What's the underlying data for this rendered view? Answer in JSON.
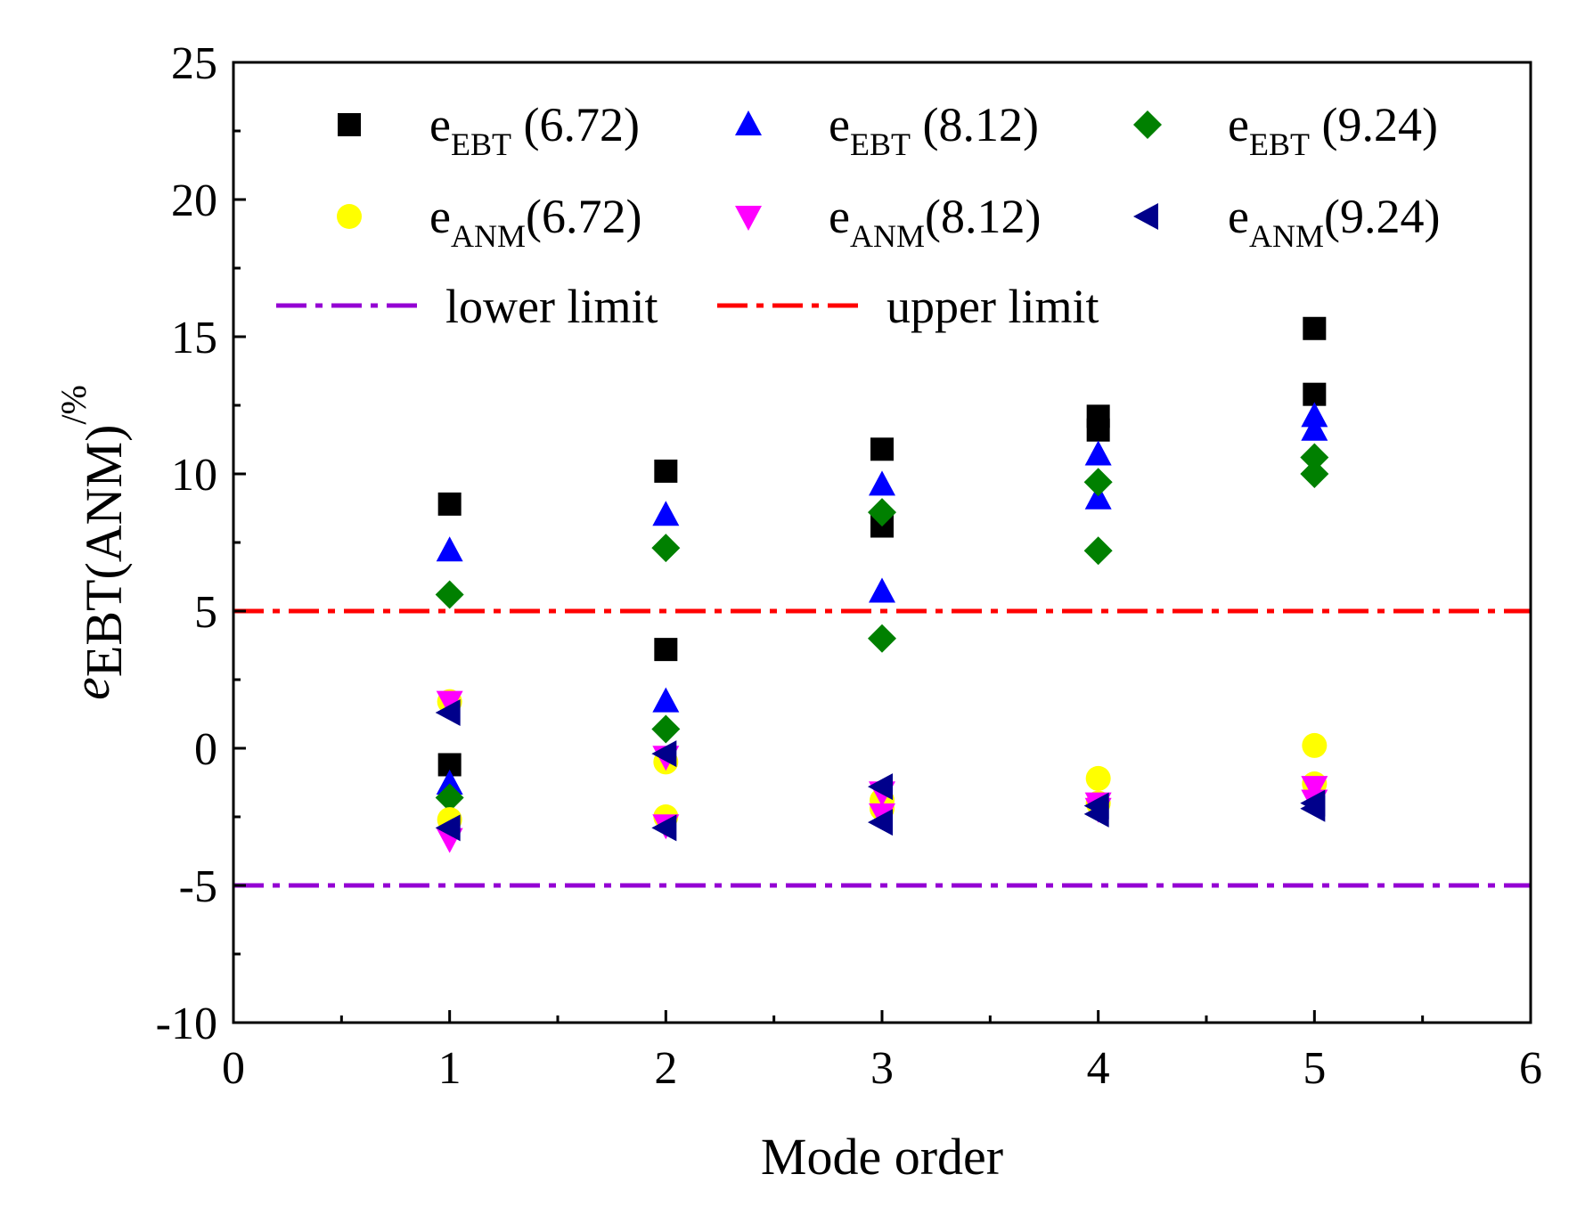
{
  "chart_data": {
    "type": "scatter",
    "title": "",
    "xlabel": "Mode order",
    "ylabel": {
      "base": "e",
      "sub": "EBT(ANM)",
      "sup": "/%"
    },
    "xlim": [
      0,
      6
    ],
    "ylim": [
      -10,
      25
    ],
    "x_ticks": [
      0,
      1,
      2,
      3,
      4,
      5,
      6
    ],
    "y_ticks": [
      -10,
      -5,
      0,
      5,
      10,
      15,
      20,
      25
    ],
    "x_tick_labels": [
      "0",
      "1",
      "2",
      "3",
      "4",
      "5",
      "6"
    ],
    "y_tick_labels": [
      "-10",
      "-5",
      "0",
      "5",
      "10",
      "15",
      "20",
      "25"
    ],
    "grid": false,
    "legend_position": "top",
    "series": [
      {
        "name": "e_EBT (6.72)",
        "label_main": "e",
        "label_sub": "EBT",
        "label_rest": " (6.72)",
        "marker": "square",
        "color": "#000000",
        "x": [
          1,
          1,
          2,
          2,
          3,
          3,
          4,
          4,
          5,
          5
        ],
        "y": [
          8.9,
          -0.6,
          10.1,
          3.6,
          10.9,
          8.1,
          12.1,
          11.6,
          15.3,
          12.9
        ]
      },
      {
        "name": "e_EBT (8.12)",
        "label_main": "e",
        "label_sub": "EBT",
        "label_rest": " (8.12)",
        "marker": "triangle-up",
        "color": "#0000ff",
        "x": [
          1,
          1,
          2,
          2,
          3,
          3,
          4,
          4,
          5,
          5
        ],
        "y": [
          7.2,
          -1.3,
          8.5,
          1.7,
          9.6,
          5.7,
          10.7,
          9.1,
          12.1,
          11.6
        ]
      },
      {
        "name": "e_EBT (9.24)",
        "label_main": "e",
        "label_sub": "EBT",
        "label_rest": " (9.24)",
        "marker": "diamond",
        "color": "#008000",
        "x": [
          1,
          1,
          2,
          2,
          3,
          3,
          4,
          4,
          5,
          5
        ],
        "y": [
          5.6,
          -1.8,
          7.3,
          0.7,
          8.6,
          4.0,
          9.7,
          7.2,
          10.6,
          10.0
        ]
      },
      {
        "name": "e_ANM(6.72)",
        "label_main": "e",
        "label_sub": "ANM",
        "label_rest": "(6.72)",
        "marker": "circle",
        "color": "#ffff00",
        "x": [
          1,
          1,
          2,
          2,
          3,
          3,
          4,
          4,
          5,
          5
        ],
        "y": [
          1.7,
          -2.6,
          -0.5,
          -2.5,
          -1.9,
          -2.2,
          -1.1,
          -2.0,
          0.1,
          -1.3
        ]
      },
      {
        "name": "e_ANM(8.12)",
        "label_main": "e",
        "label_sub": "ANM",
        "label_rest": "(8.12)",
        "marker": "triangle-down",
        "color": "#ff00ff",
        "x": [
          1,
          1,
          2,
          2,
          3,
          3,
          4,
          4,
          5,
          5
        ],
        "y": [
          1.7,
          -3.3,
          -0.3,
          -2.8,
          -1.6,
          -2.4,
          -2.0,
          -2.2,
          -1.4,
          -1.9
        ]
      },
      {
        "name": "e_ANM(9.24)",
        "label_main": "e",
        "label_sub": "ANM",
        "label_rest": "(9.24)",
        "marker": "triangle-left",
        "color": "#00008b",
        "x": [
          1,
          1,
          2,
          2,
          3,
          3,
          4,
          4,
          5,
          5
        ],
        "y": [
          1.3,
          -2.9,
          -0.2,
          -2.9,
          -1.4,
          -2.7,
          -2.1,
          -2.4,
          -2.0,
          -2.2
        ]
      }
    ],
    "reference_lines": [
      {
        "name": "lower limit",
        "y": -5,
        "color": "#9400d3",
        "style": "dash-dot"
      },
      {
        "name": "upper limit",
        "y": 5,
        "color": "#ff0000",
        "style": "dash-dot"
      }
    ]
  }
}
